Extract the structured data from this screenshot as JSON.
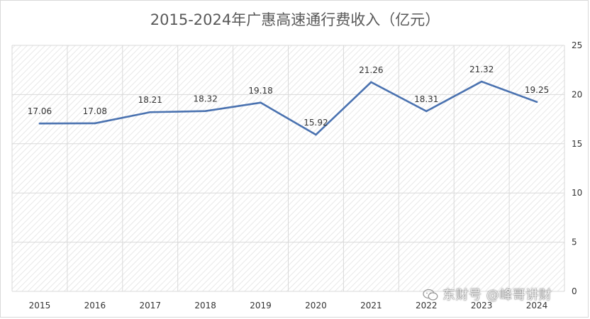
{
  "chart_data": {
    "type": "line",
    "title": "2015-2024年广惠高速通行费收入（亿元）",
    "categories": [
      "2015",
      "2016",
      "2017",
      "2018",
      "2019",
      "2020",
      "2021",
      "2022",
      "2023",
      "2024"
    ],
    "series": [
      {
        "values": [
          17.06,
          17.08,
          18.21,
          18.32,
          19.18,
          15.92,
          21.26,
          18.31,
          21.32,
          19.25
        ],
        "labels": [
          "17.06",
          "17.08",
          "18.21",
          "18.32",
          "19.18",
          "15.92",
          "21.26",
          "18.31",
          "21.32",
          "19.25"
        ],
        "color": "#4a72b0"
      }
    ],
    "y_axis": {
      "position": "right",
      "ylim": [
        0,
        25
      ],
      "ticks": [
        0,
        5,
        10,
        15,
        20,
        25
      ],
      "tick_labels": [
        "0",
        "5",
        "10",
        "15",
        "20",
        "25"
      ]
    },
    "grid": true,
    "legend": "none"
  },
  "watermark": {
    "text": "东财号 @峰哥讲财",
    "icon": "wechat-icon"
  },
  "colors": {
    "line": "#4a72b0",
    "grid": "#d9d9d9",
    "hatch": "#e2e2e2",
    "text": "#333333",
    "title": "#595959"
  }
}
